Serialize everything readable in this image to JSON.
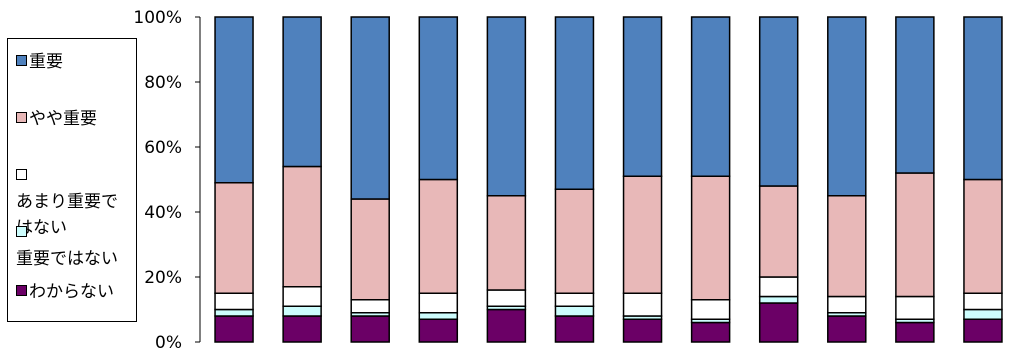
{
  "chart_data": {
    "type": "bar",
    "stacked": true,
    "percent": true,
    "categories": [
      "",
      "",
      "",
      "",
      "",
      "",
      "",
      "",
      "",
      "",
      "",
      ""
    ],
    "ylim": [
      0,
      100
    ],
    "yticks": [
      "0%",
      "20%",
      "40%",
      "60%",
      "80%",
      "100%"
    ],
    "legend_position": "left",
    "series": [
      {
        "name": "わからない",
        "color": "#6b0066",
        "values": [
          8,
          8,
          8,
          7,
          10,
          8,
          7,
          6,
          12,
          8,
          6,
          7
        ]
      },
      {
        "name": "重要ではない",
        "color": "#cdfdfd",
        "values": [
          2,
          3,
          1,
          2,
          1,
          3,
          1,
          1,
          2,
          1,
          1,
          3
        ]
      },
      {
        "name": "あまり重要ではない",
        "color": "#ffffff",
        "values": [
          5,
          6,
          4,
          6,
          5,
          4,
          7,
          6,
          6,
          5,
          7,
          5
        ]
      },
      {
        "name": "やや重要",
        "color": "#e8b8b8",
        "values": [
          34,
          37,
          31,
          35,
          29,
          32,
          36,
          38,
          28,
          31,
          38,
          35
        ]
      },
      {
        "name": "重要",
        "color": "#4f81bd",
        "values": [
          51,
          46,
          56,
          50,
          55,
          53,
          49,
          49,
          52,
          55,
          48,
          50
        ]
      }
    ]
  }
}
